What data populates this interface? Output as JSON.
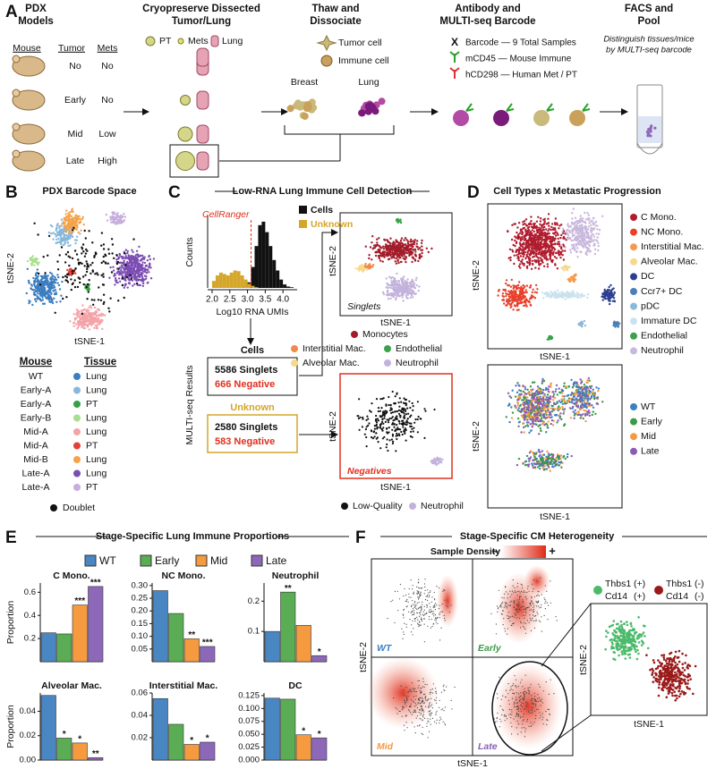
{
  "panels": {
    "A": {
      "letter": "A",
      "steps": [
        [
          "PDX",
          "Models"
        ],
        [
          "Cryopreserve Dissected",
          "Tumor/Lung"
        ],
        [
          "Thaw and",
          "Dissociate"
        ],
        [
          "Antibody and",
          "MULTI-seq Barcode"
        ],
        [
          "FACS and",
          "Pool"
        ]
      ],
      "table": {
        "headers": [
          "Mouse",
          "Tumor",
          "Mets"
        ],
        "rows": [
          [
            "No",
            "No"
          ],
          [
            "Early",
            "No"
          ],
          [
            "Mid",
            "Low"
          ],
          [
            "Late",
            "High"
          ]
        ]
      },
      "tissue_key": [
        "PT",
        "Mets",
        "Lung"
      ],
      "cell_key": [
        "Tumor cell",
        "Immune cell"
      ],
      "sources": [
        "Breast",
        "Lung"
      ],
      "barcode_key": [
        {
          "symbol": "X",
          "text": "Barcode — 9 Total Samples"
        },
        {
          "text": "mCD45 — Mouse Immune"
        },
        {
          "text": "hCD298 — Human Met / PT"
        }
      ],
      "pool_note": [
        "Distinguish tissues/mice",
        "by MULTI-seq barcode"
      ]
    },
    "B": {
      "letter": "B",
      "title": "PDX Barcode Space",
      "xlabel": "tSNE-1",
      "ylabel": "tSNE-2",
      "headers": [
        "Mouse",
        "Tissue"
      ],
      "rows": [
        {
          "mouse": "WT",
          "tissue": "Lung",
          "color": "#3b7dc0"
        },
        {
          "mouse": "Early-A",
          "tissue": "Lung",
          "color": "#86b8dd"
        },
        {
          "mouse": "Early-A",
          "tissue": "PT",
          "color": "#35a045"
        },
        {
          "mouse": "Early-B",
          "tissue": "Lung",
          "color": "#a8de8e"
        },
        {
          "mouse": "Mid-A",
          "tissue": "Lung",
          "color": "#f4a3a8"
        },
        {
          "mouse": "Mid-A",
          "tissue": "PT",
          "color": "#e3403a"
        },
        {
          "mouse": "Mid-B",
          "tissue": "Lung",
          "color": "#f5a24a"
        },
        {
          "mouse": "Late-A",
          "tissue": "Lung",
          "color": "#7b4cb3"
        },
        {
          "mouse": "Late-A",
          "tissue": "PT",
          "color": "#c6aedc"
        }
      ],
      "doublet": {
        "text": "Doublet",
        "color": "#111111"
      }
    },
    "C": {
      "letter": "C",
      "title": "Low-RNA Lung Immune Cell Detection",
      "cells": {
        "title": "Cells",
        "singlets": "5586 Singlets",
        "negative": "666 Negative"
      },
      "unknown": {
        "title": "Unknown",
        "singlets": "2580 Singlets",
        "negative": "583 Negative"
      },
      "results_label": "MULTI-seq Results",
      "singlets_plot": {
        "label": "Singlets",
        "xlabel": "tSNE-1",
        "ylabel": "tSNE-2",
        "legend": [
          {
            "name": "Monocytes",
            "color": "#a31c2a"
          },
          {
            "name": "Interstitial Mac.",
            "color": "#f08a4b"
          },
          {
            "name": "Endothelial",
            "color": "#3aa34a"
          },
          {
            "name": "Alveolar Mac.",
            "color": "#f7d98a"
          },
          {
            "name": "Neutrophil",
            "color": "#c3b3dc"
          }
        ]
      },
      "negatives_plot": {
        "label": "Negatives",
        "xlabel": "tSNE-1",
        "ylabel": "tSNE-2",
        "legend": [
          {
            "name": "Low-Quality",
            "color": "#111111"
          },
          {
            "name": "Neutrophil",
            "color": "#c3b3dc"
          }
        ]
      }
    },
    "D": {
      "letter": "D",
      "title": "Cell Types x Metastatic Progression",
      "xlabel": "tSNE-1",
      "ylabel": "tSNE-2",
      "cell_types": [
        {
          "name": "C Mono.",
          "color": "#b01c2e"
        },
        {
          "name": "NC Mono.",
          "color": "#e8412c"
        },
        {
          "name": "Interstitial Mac.",
          "color": "#f39a4e"
        },
        {
          "name": "Alveolar Mac.",
          "color": "#f6d98b"
        },
        {
          "name": "DC",
          "color": "#2b3f8f"
        },
        {
          "name": "Ccr7+ DC",
          "color": "#4a7fb8"
        },
        {
          "name": "pDC",
          "color": "#8cb9d9"
        },
        {
          "name": "Immature DC",
          "color": "#c9e2ef"
        },
        {
          "name": "Endothelial",
          "color": "#3aa34a"
        },
        {
          "name": "Neutrophil",
          "color": "#c9b8de"
        }
      ],
      "stages": [
        {
          "name": "WT",
          "color": "#3d7fc1"
        },
        {
          "name": "Early",
          "color": "#3a9a46"
        },
        {
          "name": "Mid",
          "color": "#f59a3e"
        },
        {
          "name": "Late",
          "color": "#8a5cb8"
        }
      ]
    },
    "E": {
      "letter": "E",
      "title": "Stage-Specific Lung Immune Proportions",
      "legend": [
        {
          "name": "WT",
          "color": "#4a86c2"
        },
        {
          "name": "Early",
          "color": "#5aac55"
        },
        {
          "name": "Mid",
          "color": "#f59a3e"
        },
        {
          "name": "Late",
          "color": "#8e68b8"
        }
      ]
    },
    "F": {
      "letter": "F",
      "title": "Stage-Specific CM Heterogeneity",
      "density_label": "Sample Density",
      "density_min": "–",
      "density_max": "+",
      "samples": [
        "WT",
        "Early",
        "Mid",
        "Late"
      ],
      "xlabel": "tSNE-1",
      "ylabel": "tSNE-2",
      "zoom": {
        "legend": [
          {
            "gene1": "Thbs1",
            "sign1": "(+)",
            "gene2": "Cd14",
            "sign2": "(+)",
            "color": "#4cba6a"
          },
          {
            "gene1": "Thbs1",
            "sign1": "(-)",
            "gene2": "Cd14",
            "sign2": "(-)",
            "color": "#9a1a1a"
          }
        ],
        "xlabel": "tSNE-1",
        "ylabel": "tSNE-2"
      }
    }
  },
  "chart_data": [
    {
      "type": "histogram",
      "xlabel": "Log10 RNA UMIs",
      "ylabel": "Counts",
      "bins": [
        2.0,
        2.1,
        2.2,
        2.3,
        2.4,
        2.5,
        2.6,
        2.7,
        2.8,
        2.9,
        3.0,
        3.1,
        3.2,
        3.3,
        3.4,
        3.5,
        3.6,
        3.7,
        3.8,
        3.9,
        4.0,
        4.1,
        4.2,
        4.3
      ],
      "xlim": [
        1.95,
        4.35
      ],
      "xticks": [
        {
          "value": 2,
          "label": "2.0"
        },
        {
          "value": 2.5,
          "label": "2.5"
        },
        {
          "value": 3,
          "label": "3.0"
        },
        {
          "value": 3.5,
          "label": "3.5"
        },
        {
          "value": 4,
          "label": "4.0"
        }
      ],
      "ylim": [
        0,
        100
      ],
      "series": [
        {
          "name": "Cells",
          "color": "#111111",
          "values": [
            0,
            0,
            0,
            0,
            0,
            0,
            0,
            0,
            0,
            2,
            8,
            30,
            60,
            90,
            95,
            80,
            60,
            40,
            25,
            12,
            5,
            2,
            1
          ]
        },
        {
          "name": "Unknown",
          "color": "#d4a62a",
          "values": [
            10,
            18,
            22,
            20,
            18,
            22,
            25,
            24,
            18,
            12,
            6,
            3,
            1,
            0,
            0,
            0,
            0,
            0,
            0,
            0,
            0,
            0,
            0
          ]
        }
      ],
      "annotations": [
        {
          "text": "CellRanger",
          "x": 3.1
        }
      ]
    },
    {
      "type": "bar",
      "title": "C Mono.",
      "ylabel": "Proportion",
      "values": [
        0.25,
        0.24,
        0.49,
        0.65
      ],
      "significance": [
        null,
        null,
        "***",
        "***"
      ],
      "ylim": [
        0,
        0.68
      ],
      "yticks": [
        0.2,
        0.4,
        0.6
      ]
    },
    {
      "type": "bar",
      "title": "NC Mono.",
      "values": [
        0.28,
        0.19,
        0.09,
        0.06
      ],
      "significance": [
        null,
        null,
        "**",
        "***"
      ],
      "ylim": [
        0,
        0.31
      ],
      "yticks": [
        {
          "value": 0.05,
          "label": "0.05"
        },
        {
          "value": 0.1,
          "label": "0.10"
        },
        {
          "value": 0.15,
          "label": "0.15"
        },
        {
          "value": 0.2,
          "label": "0.20"
        },
        {
          "value": 0.25,
          "label": "0.25"
        },
        {
          "value": 0.3,
          "label": "0.30"
        }
      ]
    },
    {
      "type": "bar",
      "title": "Neutrophil",
      "values": [
        0.1,
        0.23,
        0.12,
        0.02
      ],
      "significance": [
        null,
        "**",
        null,
        "*"
      ],
      "ylim": [
        0,
        0.26
      ],
      "yticks": [
        0.1,
        0.2
      ]
    },
    {
      "type": "bar",
      "title": "Alveolar Mac.",
      "ylabel": "Proportion",
      "values": [
        0.053,
        0.018,
        0.014,
        0.002
      ],
      "significance": [
        null,
        "*",
        "*",
        "**"
      ],
      "ylim": [
        0,
        0.055
      ],
      "yticks": [
        {
          "value": 0,
          "label": "0.00"
        },
        {
          "value": 0.02,
          "label": "0.02"
        },
        {
          "value": 0.04,
          "label": "0.04"
        }
      ]
    },
    {
      "type": "bar",
      "title": "Interstitial Mac.",
      "values": [
        0.055,
        0.032,
        0.014,
        0.016
      ],
      "significance": [
        null,
        null,
        "*",
        "*"
      ],
      "ylim": [
        0,
        0.06
      ],
      "yticks": [
        0.02,
        0.04,
        0.06
      ]
    },
    {
      "type": "bar",
      "title": "DC",
      "values": [
        0.12,
        0.118,
        0.049,
        0.043
      ],
      "significance": [
        null,
        null,
        "*",
        "*"
      ],
      "ylim": [
        0,
        0.13
      ],
      "yticks": [
        {
          "value": 0,
          "label": "0.000"
        },
        {
          "value": 0.025,
          "label": "0.025"
        },
        {
          "value": 0.05,
          "label": "0.050"
        },
        {
          "value": 0.075,
          "label": "0.075"
        },
        {
          "value": 0.1,
          "label": "0.100"
        },
        {
          "value": 0.125,
          "label": "0.125"
        }
      ]
    }
  ]
}
